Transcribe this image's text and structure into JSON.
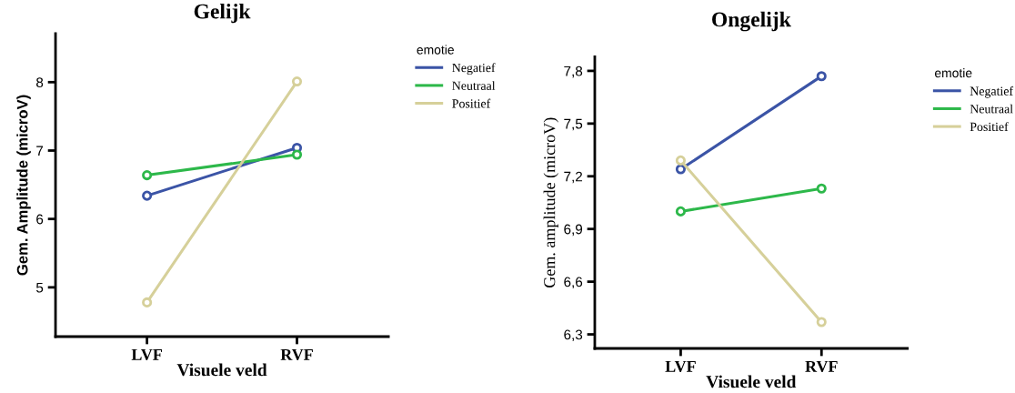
{
  "chart_data": [
    {
      "type": "line",
      "title": "Gelijk",
      "xlabel": "Visuele veld",
      "ylabel": "Gem. Amplitude (microV)",
      "legend_title": "emotie",
      "categories": [
        "LVF",
        "RVF"
      ],
      "ylim": [
        4.28,
        8.71
      ],
      "yticks": [
        5,
        6,
        7,
        8
      ],
      "grid": false,
      "legend": "top right",
      "marker": "circle",
      "line_style": "solid",
      "series": [
        {
          "name": "Negatief",
          "color": "#3b54a6",
          "values": [
            6.34,
            7.04
          ]
        },
        {
          "name": "Neutraal",
          "color": "#2db84a",
          "values": [
            6.64,
            6.94
          ]
        },
        {
          "name": "Positief",
          "color": "#d6d09a",
          "values": [
            4.78,
            8.01
          ]
        }
      ]
    },
    {
      "type": "line",
      "title": "Ongelijk",
      "xlabel": "Visuele veld",
      "ylabel": "Gem. amplitude (microV)",
      "legend_title": "emotie",
      "categories": [
        "LVF",
        "RVF"
      ],
      "ylim": [
        6.22,
        7.88
      ],
      "yticks": [
        {
          "value": 6.3,
          "label": "6,3"
        },
        {
          "value": 6.6,
          "label": "6,6"
        },
        {
          "value": 6.9,
          "label": "6,9"
        },
        {
          "value": 7.2,
          "label": "7,2"
        },
        {
          "value": 7.5,
          "label": "7,5"
        },
        {
          "value": 7.8,
          "label": "7,8"
        }
      ],
      "grid": false,
      "legend": "top right",
      "marker": "circle",
      "line_style": "solid",
      "series": [
        {
          "name": "Negatief",
          "color": "#3b54a6",
          "values": [
            7.24,
            7.77
          ]
        },
        {
          "name": "Neutraal",
          "color": "#2db84a",
          "values": [
            7.0,
            7.13
          ]
        },
        {
          "name": "Positief",
          "color": "#d6d09a",
          "values": [
            7.29,
            6.37
          ]
        }
      ]
    }
  ]
}
